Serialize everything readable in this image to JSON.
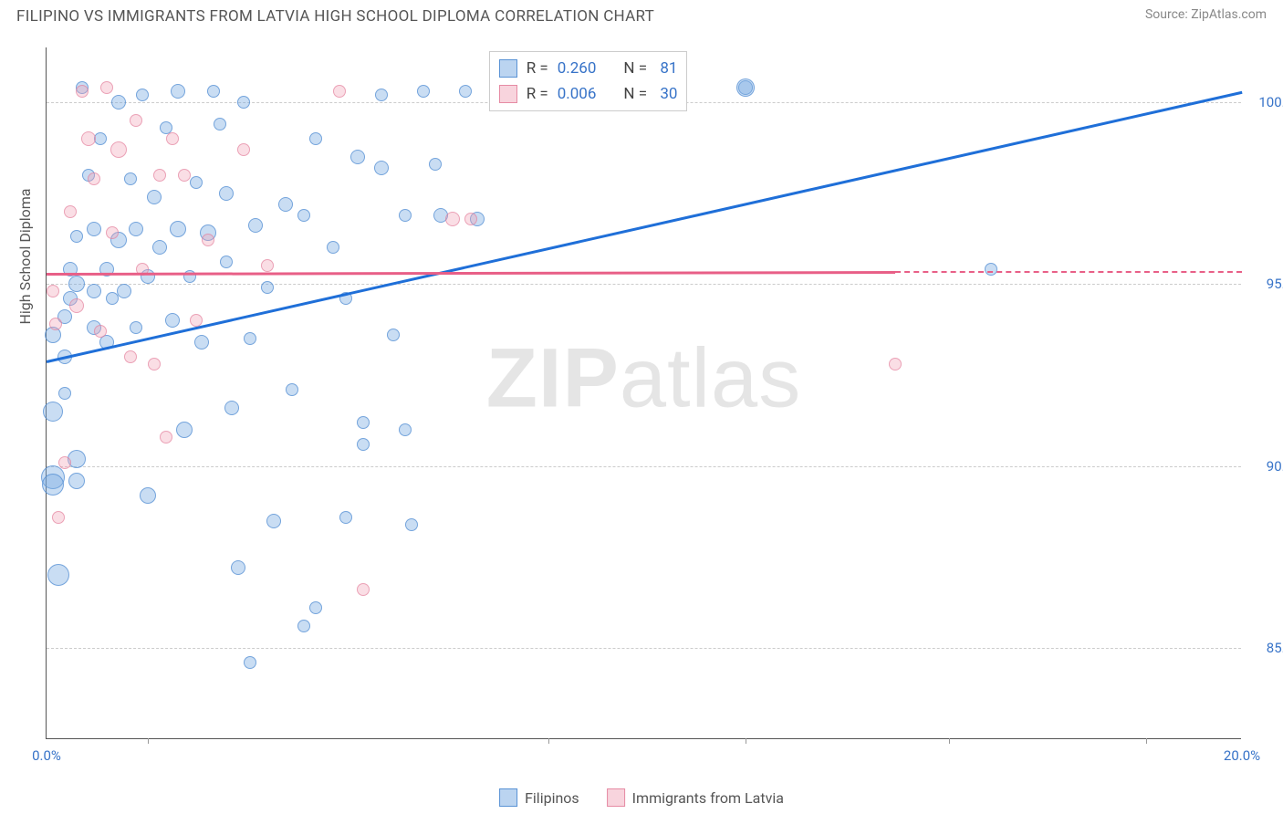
{
  "title": "FILIPINO VS IMMIGRANTS FROM LATVIA HIGH SCHOOL DIPLOMA CORRELATION CHART",
  "source": "Source: ZipAtlas.com",
  "ylabel": "High School Diploma",
  "watermark_a": "ZIP",
  "watermark_b": "atlas",
  "chart": {
    "type": "scatter",
    "xlim": [
      0,
      20
    ],
    "ylim": [
      82.5,
      101.5
    ],
    "x_ticks": [
      0,
      20
    ],
    "x_tick_labels": [
      "0.0%",
      "20.0%"
    ],
    "x_minor_ticks": [
      1.7,
      8.4,
      11.7,
      15.1,
      18.4
    ],
    "y_ticks": [
      85,
      90,
      95,
      100
    ],
    "y_tick_labels": [
      "85.0%",
      "90.0%",
      "95.0%",
      "100.0%"
    ],
    "grid_color": "#cccccc",
    "background": "#ffffff",
    "series": [
      {
        "name": "Filipinos",
        "color_fill": "rgba(120,170,225,0.4)",
        "color_stroke": "rgba(80,140,210,0.7)",
        "R": "0.260",
        "N": "81",
        "trend": {
          "x1": 0,
          "y1": 92.9,
          "x2": 20,
          "y2": 100.3,
          "color": "#1f6fd8"
        },
        "points": [
          [
            0.1,
            93.6,
            18
          ],
          [
            0.1,
            91.5,
            22
          ],
          [
            0.1,
            89.7,
            26
          ],
          [
            0.1,
            89.5,
            24
          ],
          [
            0.2,
            87.0,
            24
          ],
          [
            0.3,
            94.1,
            16
          ],
          [
            0.3,
            93.0,
            16
          ],
          [
            0.3,
            92.0,
            14
          ],
          [
            0.4,
            95.4,
            16
          ],
          [
            0.4,
            94.6,
            16
          ],
          [
            0.5,
            96.3,
            14
          ],
          [
            0.5,
            95.0,
            18
          ],
          [
            0.5,
            90.2,
            20
          ],
          [
            0.5,
            89.6,
            18
          ],
          [
            0.6,
            100.4,
            14
          ],
          [
            0.7,
            98.0,
            14
          ],
          [
            0.8,
            96.5,
            16
          ],
          [
            0.8,
            94.8,
            16
          ],
          [
            0.8,
            93.8,
            16
          ],
          [
            0.9,
            99.0,
            14
          ],
          [
            1.0,
            95.4,
            16
          ],
          [
            1.0,
            93.4,
            16
          ],
          [
            1.1,
            94.6,
            14
          ],
          [
            1.2,
            96.2,
            18
          ],
          [
            1.2,
            100.0,
            16
          ],
          [
            1.3,
            94.8,
            16
          ],
          [
            1.4,
            97.9,
            14
          ],
          [
            1.5,
            96.5,
            16
          ],
          [
            1.5,
            93.8,
            14
          ],
          [
            1.6,
            100.2,
            14
          ],
          [
            1.7,
            95.2,
            16
          ],
          [
            1.7,
            89.2,
            18
          ],
          [
            1.8,
            97.4,
            16
          ],
          [
            1.9,
            96.0,
            16
          ],
          [
            2.0,
            99.3,
            14
          ],
          [
            2.1,
            94.0,
            16
          ],
          [
            2.2,
            96.5,
            18
          ],
          [
            2.2,
            100.3,
            16
          ],
          [
            2.3,
            91.0,
            18
          ],
          [
            2.4,
            95.2,
            14
          ],
          [
            2.5,
            97.8,
            14
          ],
          [
            2.6,
            93.4,
            16
          ],
          [
            2.7,
            96.4,
            18
          ],
          [
            2.8,
            100.3,
            14
          ],
          [
            2.9,
            99.4,
            14
          ],
          [
            3.0,
            95.6,
            14
          ],
          [
            3.0,
            97.5,
            16
          ],
          [
            3.1,
            91.6,
            16
          ],
          [
            3.2,
            87.2,
            16
          ],
          [
            3.3,
            100.0,
            14
          ],
          [
            3.4,
            93.5,
            14
          ],
          [
            3.4,
            84.6,
            14
          ],
          [
            3.5,
            96.6,
            16
          ],
          [
            3.7,
            94.9,
            14
          ],
          [
            3.8,
            88.5,
            16
          ],
          [
            4.0,
            97.2,
            16
          ],
          [
            4.1,
            92.1,
            14
          ],
          [
            4.3,
            96.9,
            14
          ],
          [
            4.3,
            85.6,
            14
          ],
          [
            4.5,
            99.0,
            14
          ],
          [
            4.5,
            86.1,
            14
          ],
          [
            4.8,
            96.0,
            14
          ],
          [
            5.0,
            94.6,
            14
          ],
          [
            5.0,
            88.6,
            14
          ],
          [
            5.2,
            98.5,
            16
          ],
          [
            5.3,
            91.2,
            14
          ],
          [
            5.3,
            90.6,
            14
          ],
          [
            5.6,
            100.2,
            14
          ],
          [
            5.6,
            98.2,
            16
          ],
          [
            5.8,
            93.6,
            14
          ],
          [
            6.0,
            91.0,
            14
          ],
          [
            6.1,
            88.4,
            14
          ],
          [
            6.3,
            100.3,
            14
          ],
          [
            6.5,
            98.3,
            14
          ],
          [
            6.6,
            96.9,
            16
          ],
          [
            7.0,
            100.3,
            14
          ],
          [
            7.2,
            96.8,
            16
          ],
          [
            11.7,
            100.4,
            16
          ],
          [
            11.7,
            100.4,
            20
          ],
          [
            15.8,
            95.4,
            14
          ],
          [
            6.0,
            96.9,
            14
          ]
        ]
      },
      {
        "name": "Immigrants from Latvia",
        "color_fill": "rgba(240,160,180,0.35)",
        "color_stroke": "rgba(225,120,150,0.6)",
        "R": "0.006",
        "N": "30",
        "trend": {
          "x1": 0,
          "y1": 95.3,
          "x2": 14.2,
          "y2": 95.35,
          "color": "#e85f87"
        },
        "points": [
          [
            0.1,
            94.8,
            14
          ],
          [
            0.15,
            93.9,
            14
          ],
          [
            0.2,
            88.6,
            14
          ],
          [
            0.3,
            90.1,
            14
          ],
          [
            0.4,
            97.0,
            14
          ],
          [
            0.5,
            94.4,
            16
          ],
          [
            0.6,
            100.3,
            14
          ],
          [
            0.7,
            99.0,
            16
          ],
          [
            0.8,
            97.9,
            14
          ],
          [
            0.9,
            93.7,
            14
          ],
          [
            1.0,
            100.4,
            14
          ],
          [
            1.1,
            96.4,
            14
          ],
          [
            1.2,
            98.7,
            18
          ],
          [
            1.4,
            93.0,
            14
          ],
          [
            1.5,
            99.5,
            14
          ],
          [
            1.6,
            95.4,
            14
          ],
          [
            1.8,
            92.8,
            14
          ],
          [
            1.9,
            98.0,
            14
          ],
          [
            2.0,
            90.8,
            14
          ],
          [
            2.1,
            99.0,
            14
          ],
          [
            2.3,
            98.0,
            14
          ],
          [
            2.5,
            94.0,
            14
          ],
          [
            3.3,
            98.7,
            14
          ],
          [
            3.7,
            95.5,
            14
          ],
          [
            4.9,
            100.3,
            14
          ],
          [
            5.3,
            86.6,
            14
          ],
          [
            6.8,
            96.8,
            16
          ],
          [
            7.1,
            96.8,
            14
          ],
          [
            14.2,
            92.8,
            14
          ],
          [
            2.7,
            96.2,
            14
          ]
        ]
      }
    ]
  },
  "stats_labels": {
    "R": "R =",
    "N": "N ="
  }
}
